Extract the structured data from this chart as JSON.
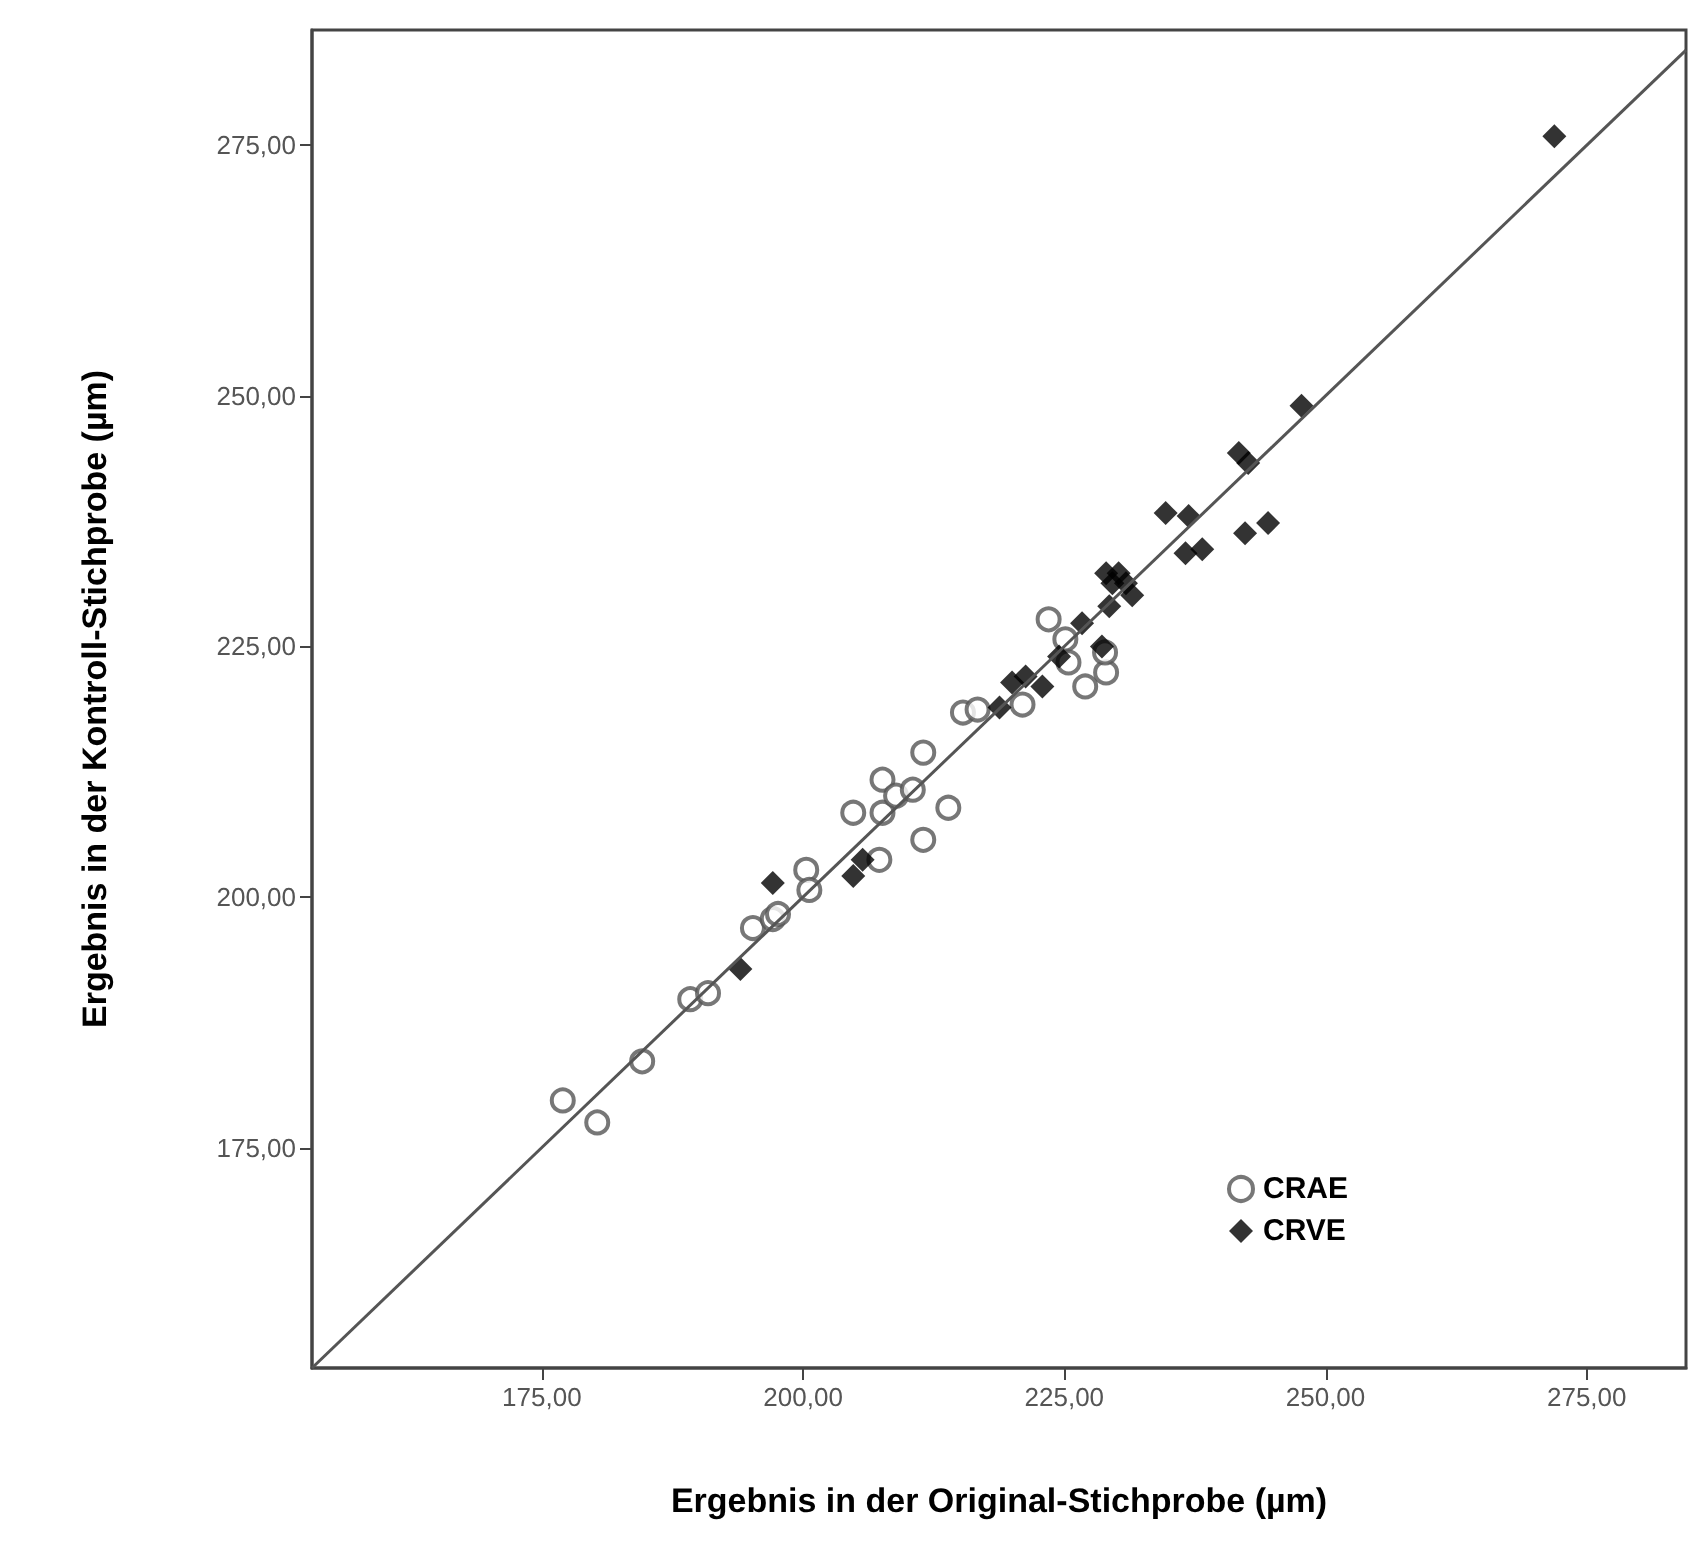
{
  "chart_data": {
    "type": "scatter",
    "xlabel": "Ergebnis in der Original-Stichprobe (µm)",
    "ylabel": "Ergebnis in der Kontroll-Stichprobe (µm)",
    "xlim": [
      153,
      284.5
    ],
    "ylim": [
      153,
      286.5
    ],
    "xticks": [
      {
        "value": 175,
        "label": "175,00"
      },
      {
        "value": 200,
        "label": "200,00"
      },
      {
        "value": 225,
        "label": "225,00"
      },
      {
        "value": 250,
        "label": "250,00"
      },
      {
        "value": 275,
        "label": "275,00"
      }
    ],
    "yticks": [
      {
        "value": 175,
        "label": "175,00"
      },
      {
        "value": 200,
        "label": "200,00"
      },
      {
        "value": 225,
        "label": "225,00"
      },
      {
        "value": 250,
        "label": "250,00"
      },
      {
        "value": 275,
        "label": "275,00"
      }
    ],
    "grid": false,
    "legend": "bottom right",
    "series": [
      {
        "name": "CRAE",
        "color": "#555555",
        "marker": "circle",
        "x": [
          177.0,
          180.3,
          184.6,
          189.2,
          190.9,
          195.2,
          197.1,
          197.6,
          200.3,
          200.6,
          207.3,
          211.5,
          204.8,
          207.6,
          207.6,
          208.9,
          210.5,
          211.5,
          213.9,
          215.3,
          216.7,
          221.0,
          227.0,
          229.0,
          223.5,
          225.1,
          225.4,
          228.9
        ],
        "values": [
          179.7,
          177.5,
          183.6,
          189.8,
          190.4,
          196.9,
          197.8,
          198.3,
          202.7,
          200.7,
          203.7,
          205.7,
          208.4,
          211.7,
          208.4,
          210.1,
          210.7,
          214.4,
          208.9,
          218.4,
          218.7,
          219.2,
          221.0,
          222.4,
          227.7,
          225.7,
          223.4,
          224.4
        ]
      },
      {
        "name": "CRVE",
        "color": "#000000",
        "marker": "diamond",
        "x": [
          194.0,
          197.1,
          204.8,
          205.7,
          218.8,
          220.0,
          221.3,
          222.9,
          224.5,
          226.7,
          228.6,
          229.3,
          229.0,
          230.2,
          229.6,
          230.9,
          231.5,
          234.7,
          236.9,
          236.6,
          238.2,
          242.3,
          244.5,
          241.7,
          242.6,
          247.7,
          271.9
        ],
        "values": [
          192.8,
          201.4,
          202.1,
          203.7,
          218.9,
          221.4,
          222.0,
          221.0,
          224.0,
          227.3,
          225.0,
          229.0,
          232.3,
          232.3,
          231.3,
          231.3,
          230.1,
          238.3,
          238.0,
          234.3,
          234.7,
          236.3,
          237.3,
          244.3,
          243.3,
          249.0,
          275.9
        ]
      },
      {
        "type": "line",
        "color": "#555555",
        "marker": "none",
        "x": [
          153,
          284.5
        ],
        "values": [
          153,
          284.5
        ]
      }
    ]
  }
}
